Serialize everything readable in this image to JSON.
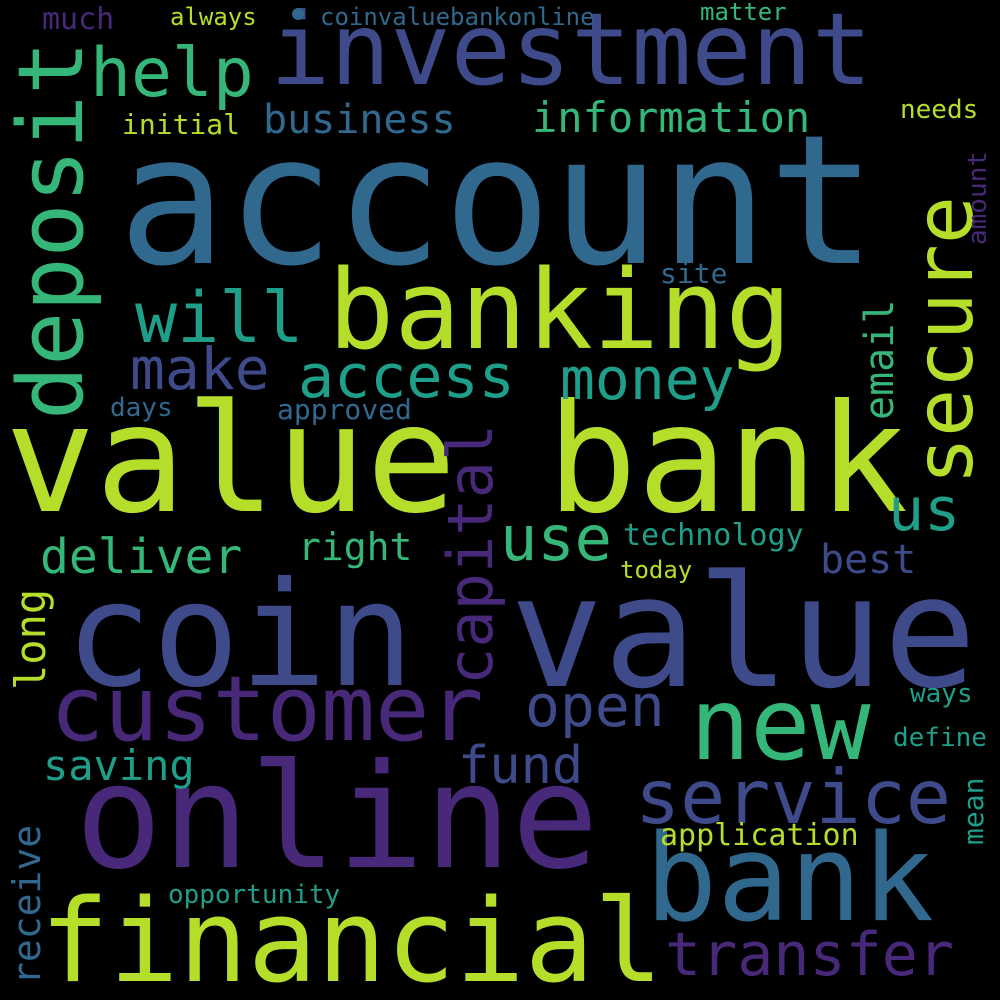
{
  "palette": {
    "lime": "#b5de2b",
    "green": "#35b779",
    "teal": "#1f9e89",
    "blue": "#31688e",
    "indigo": "#3e4a89",
    "purple": "#482878",
    "deep_purple": "#440154"
  },
  "words": {
    "account": "account",
    "value_bank": "value bank",
    "coin": "coin",
    "value": "value",
    "online": "online",
    "investment": "investment",
    "banking": "banking",
    "bank": "bank",
    "financial": "financial",
    "customer": "customer",
    "new": "new",
    "deposit": "deposit",
    "secure": "secure",
    "service": "service",
    "capital": "capital",
    "help": "help",
    "will": "will",
    "access": "access",
    "money": "money",
    "make": "make",
    "use": "use",
    "business": "business",
    "information": "information",
    "deliver": "deliver",
    "open": "open",
    "transfer": "transfer",
    "fund": "fund",
    "saving": "saving",
    "us": "us",
    "best": "best",
    "right": "right",
    "email": "email",
    "long": "long",
    "receive": "receive",
    "technology": "technology",
    "application": "application",
    "approved": "approved",
    "much": "much",
    "always": "always",
    "coinvaluebankonline": "coinvaluebankonline",
    "matter": "matter",
    "initial": "initial",
    "needs": "needs",
    "amount": "amount",
    "site": "site",
    "days": "days",
    "today": "today",
    "ways": "ways",
    "define": "define",
    "mean": "mean",
    "opportunity": "opportunity"
  }
}
